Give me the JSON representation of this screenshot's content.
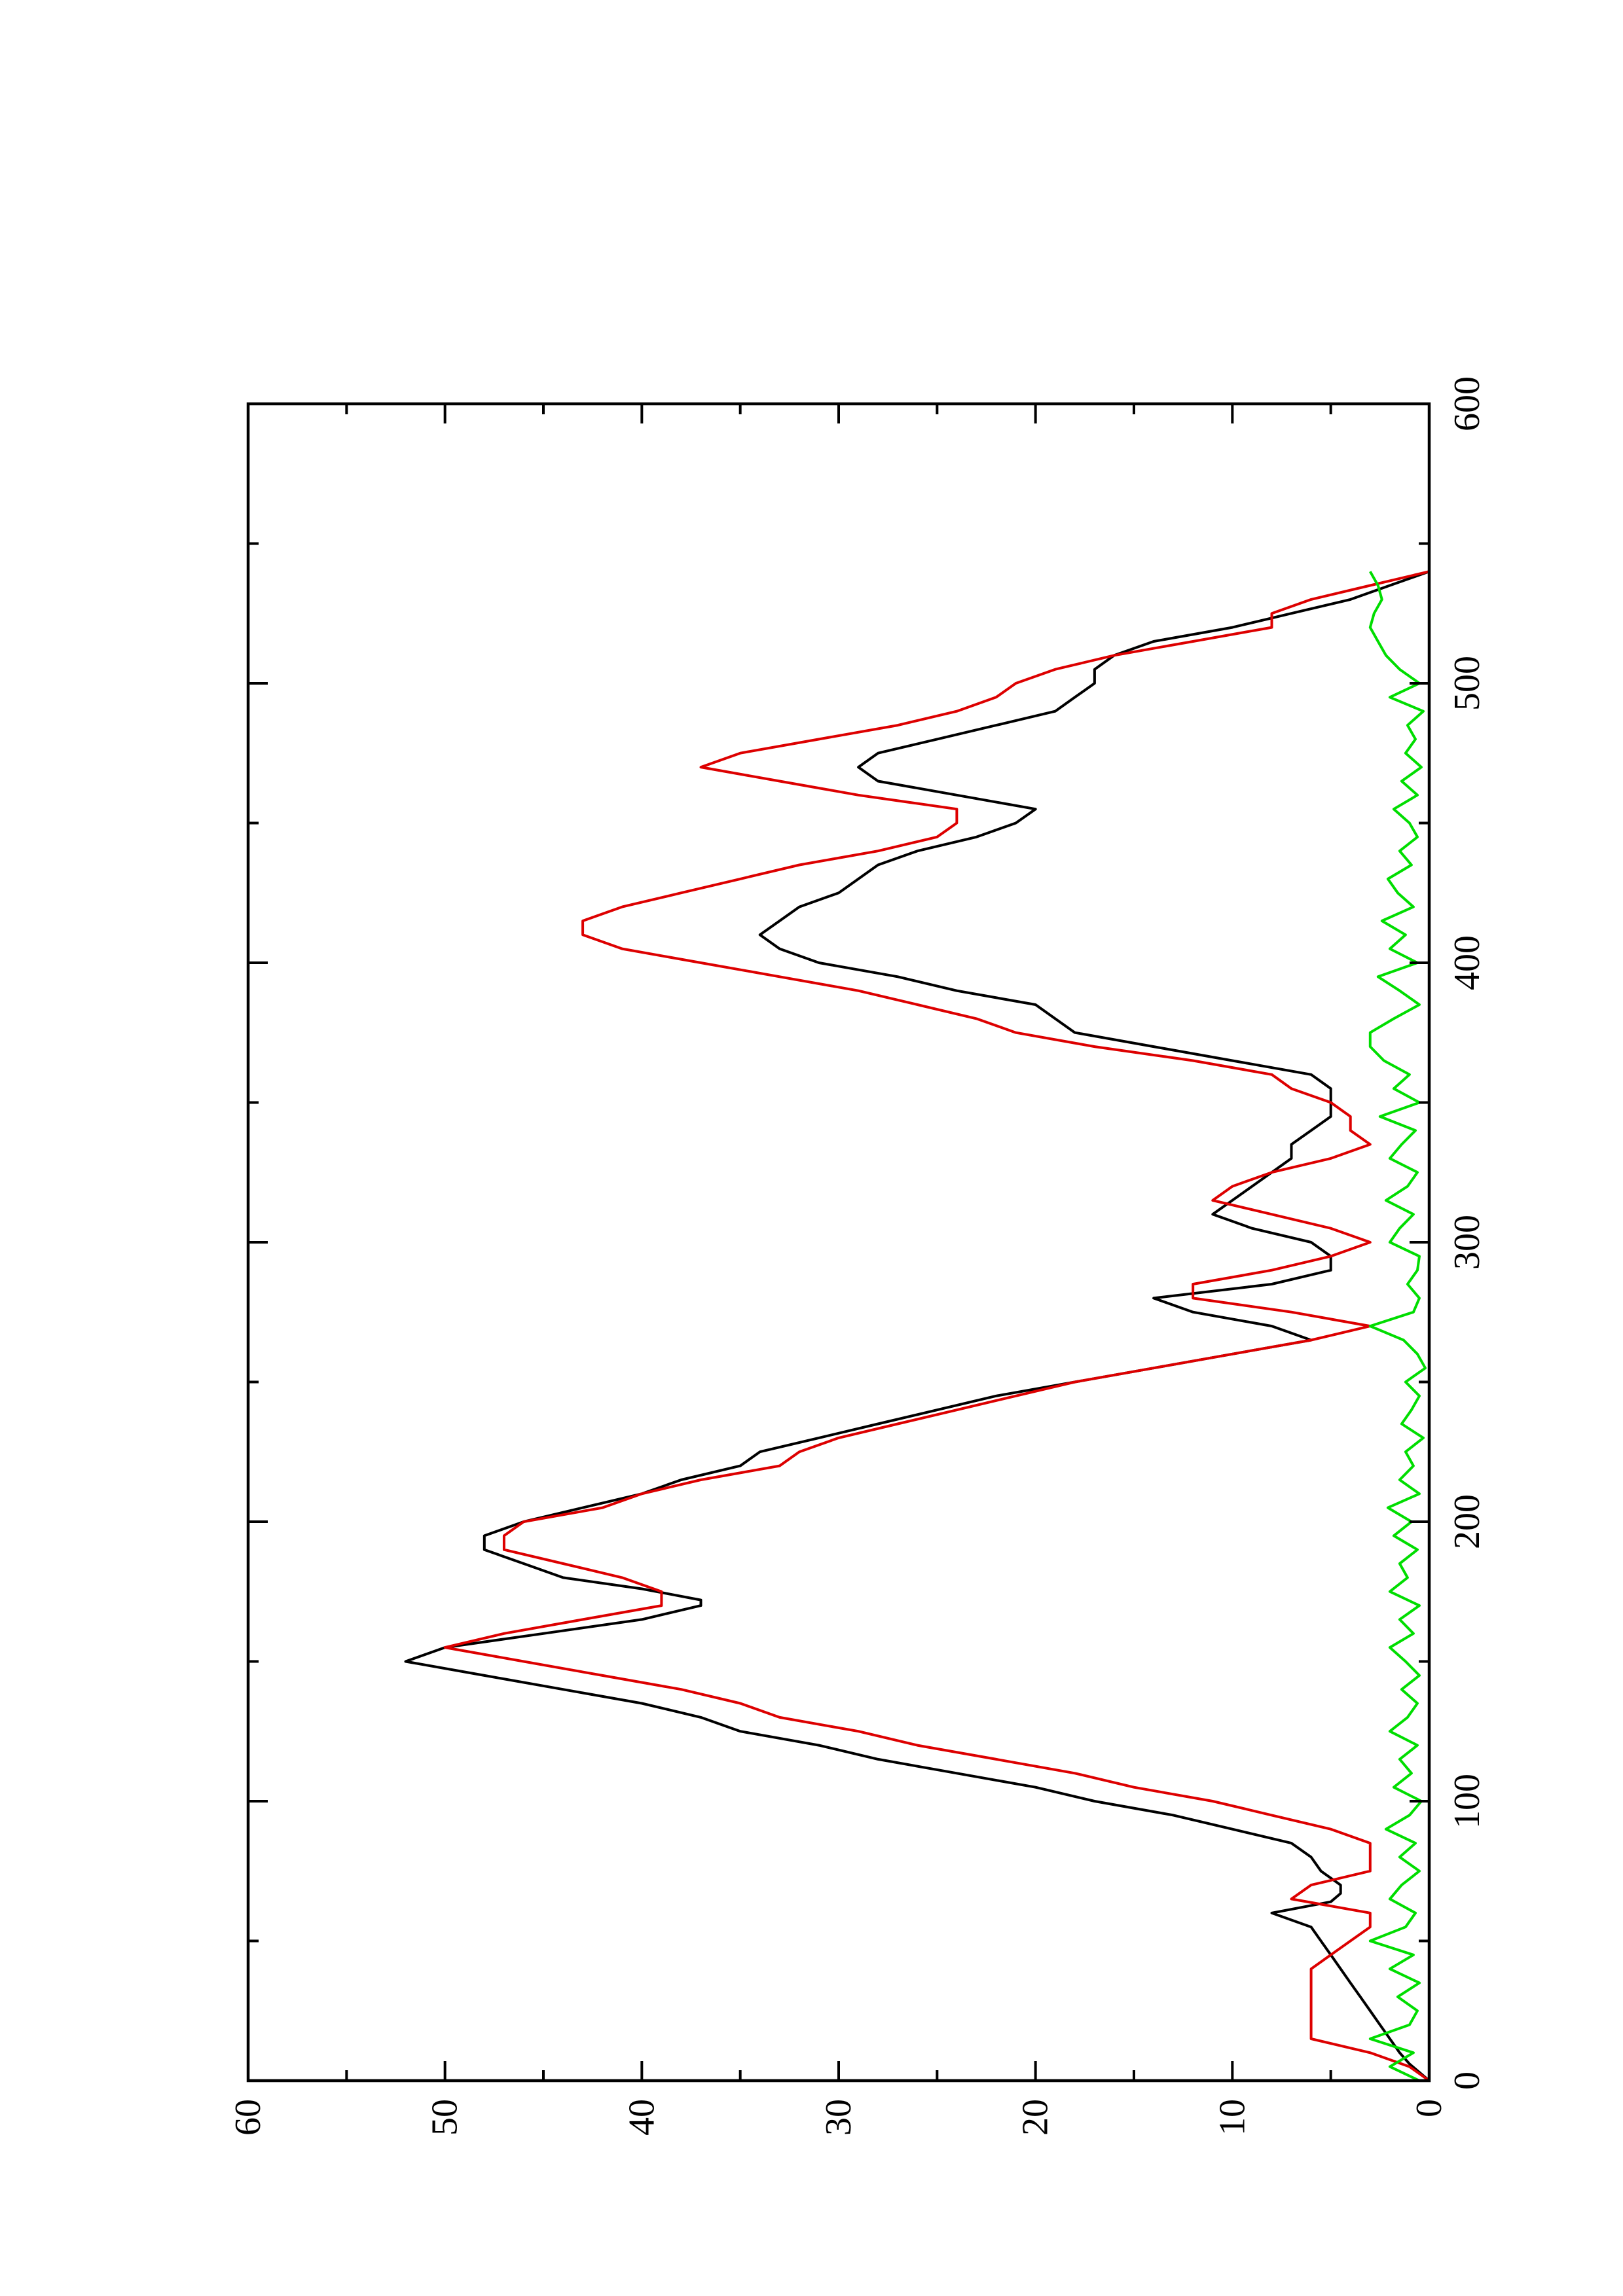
{
  "chart_data": {
    "type": "line",
    "orientation": "rotated-90-ccw",
    "title": "",
    "xlabel": "",
    "ylabel": "",
    "xlim": [
      0,
      600
    ],
    "ylim": [
      0,
      60
    ],
    "x_ticks": [
      0,
      100,
      200,
      300,
      400,
      500,
      600
    ],
    "y_ticks": [
      0,
      10,
      20,
      30,
      40,
      50,
      60
    ],
    "x_tick_labels": [
      "0",
      "100",
      "200",
      "300",
      "400",
      "500",
      "600"
    ],
    "y_tick_labels": [
      "0",
      "10",
      "20",
      "30",
      "40",
      "50",
      "60"
    ],
    "grid": false,
    "legend": "none",
    "series": [
      {
        "color": "#000000",
        "x": [
          0,
          6,
          10,
          15,
          20,
          25,
          30,
          35,
          40,
          45,
          50,
          55,
          60,
          64,
          67,
          70,
          75,
          80,
          85,
          90,
          95,
          100,
          105,
          110,
          115,
          120,
          125,
          130,
          135,
          140,
          145,
          150,
          155,
          160,
          165,
          170,
          172,
          176,
          180,
          185,
          190,
          195,
          200,
          205,
          210,
          215,
          220,
          225,
          230,
          235,
          240,
          245,
          250,
          255,
          260,
          265,
          270,
          275,
          280,
          285,
          290,
          295,
          300,
          305,
          310,
          315,
          320,
          325,
          330,
          335,
          340,
          345,
          350,
          355,
          360,
          365,
          370,
          375,
          380,
          385,
          390,
          395,
          400,
          405,
          410,
          415,
          420,
          425,
          430,
          435,
          440,
          445,
          450,
          455,
          460,
          465,
          470,
          475,
          480,
          485,
          490,
          495,
          500,
          505,
          510,
          515,
          520,
          525,
          530,
          535,
          540
        ],
        "y": [
          0,
          1,
          1.5,
          2,
          2.5,
          3,
          3.5,
          4,
          4.5,
          5,
          5.5,
          6,
          8,
          5,
          4.5,
          4.5,
          5.5,
          6,
          7,
          10,
          13,
          17,
          20,
          24,
          28,
          31,
          35,
          37,
          40,
          44,
          48,
          52,
          50,
          45,
          40,
          37,
          37,
          40,
          44,
          46,
          48,
          48,
          46,
          43,
          40,
          38,
          35,
          34,
          31,
          28,
          25,
          22,
          18,
          14,
          10,
          6,
          8,
          12,
          14,
          8,
          5,
          5,
          6,
          9,
          11,
          10,
          9,
          8,
          7,
          7,
          6,
          5,
          5,
          5,
          6,
          10,
          14,
          18,
          19,
          20,
          24,
          27,
          31,
          33,
          34,
          33,
          32,
          30,
          29,
          28,
          26,
          23,
          21,
          20,
          24,
          28,
          29,
          28,
          25,
          22,
          19,
          18,
          17,
          17,
          16,
          14,
          10,
          7,
          4,
          2,
          0
        ]
      },
      {
        "color": "#dd0000",
        "x": [
          0,
          5,
          10,
          15,
          20,
          25,
          30,
          35,
          40,
          45,
          50,
          55,
          60,
          65,
          70,
          75,
          80,
          85,
          90,
          95,
          100,
          105,
          110,
          115,
          120,
          125,
          130,
          135,
          140,
          145,
          150,
          155,
          160,
          165,
          170,
          175,
          180,
          185,
          190,
          195,
          200,
          205,
          210,
          215,
          220,
          225,
          230,
          235,
          240,
          245,
          250,
          255,
          260,
          265,
          270,
          275,
          280,
          285,
          290,
          295,
          300,
          305,
          310,
          315,
          320,
          325,
          330,
          335,
          340,
          345,
          350,
          355,
          360,
          365,
          370,
          375,
          380,
          385,
          390,
          395,
          400,
          405,
          410,
          415,
          420,
          425,
          430,
          435,
          440,
          445,
          450,
          455,
          460,
          465,
          470,
          475,
          480,
          485,
          490,
          495,
          500,
          505,
          510,
          515,
          520,
          525,
          530,
          535,
          540
        ],
        "y": [
          0,
          1,
          3,
          6,
          6,
          6,
          6,
          6,
          6,
          5,
          4,
          3,
          3,
          7,
          6,
          3,
          3,
          3,
          5,
          8,
          11,
          15,
          18,
          22,
          26,
          29,
          33,
          35,
          38,
          42,
          46,
          50,
          47,
          43,
          39,
          39,
          41,
          44,
          47,
          47,
          46,
          42,
          40,
          37,
          33,
          32,
          30,
          27,
          24,
          21,
          18,
          14,
          10,
          6,
          3,
          7,
          12,
          12,
          8,
          5,
          3,
          5,
          8,
          11,
          10,
          8,
          5,
          3,
          4,
          4,
          5,
          7,
          8,
          12,
          17,
          21,
          23,
          26,
          29,
          33,
          37,
          41,
          43,
          43,
          41,
          38,
          35,
          32,
          28,
          25,
          24,
          24,
          29,
          33,
          37,
          35,
          31,
          27,
          24,
          22,
          21,
          19,
          16,
          12,
          8,
          8,
          6,
          3,
          0
        ]
      },
      {
        "color": "#00dd00",
        "x": [
          0,
          5,
          10,
          15,
          20,
          25,
          30,
          35,
          40,
          45,
          50,
          55,
          60,
          65,
          70,
          75,
          80,
          85,
          90,
          95,
          100,
          105,
          110,
          115,
          120,
          125,
          130,
          135,
          140,
          145,
          150,
          155,
          160,
          165,
          170,
          175,
          180,
          185,
          190,
          195,
          200,
          205,
          210,
          215,
          220,
          225,
          230,
          235,
          240,
          245,
          250,
          255,
          260,
          265,
          270,
          275,
          280,
          285,
          290,
          295,
          300,
          305,
          310,
          315,
          320,
          325,
          330,
          335,
          340,
          345,
          350,
          355,
          360,
          365,
          370,
          375,
          380,
          385,
          390,
          395,
          400,
          405,
          410,
          415,
          420,
          425,
          430,
          435,
          440,
          445,
          450,
          455,
          460,
          465,
          470,
          475,
          480,
          485,
          490,
          495,
          500,
          505,
          510,
          515,
          520,
          525,
          530,
          535,
          540
        ],
        "y": [
          0.5,
          2,
          0.8,
          3,
          1,
          0.6,
          1.6,
          0.5,
          2,
          0.8,
          3,
          1.2,
          0.7,
          2,
          1.4,
          0.5,
          1.5,
          0.7,
          2.2,
          1,
          0.4,
          1.8,
          0.9,
          1.5,
          0.6,
          2,
          1.1,
          0.6,
          1.4,
          0.5,
          1.2,
          2,
          0.8,
          1.5,
          0.5,
          2,
          1.1,
          1.5,
          0.6,
          1.8,
          0.9,
          2.1,
          0.5,
          1.5,
          0.8,
          1.2,
          0.3,
          1.4,
          0.9,
          0.5,
          1.2,
          0.2,
          0.6,
          1.3,
          3,
          0.8,
          0.5,
          1.1,
          0.6,
          0.5,
          2,
          1.5,
          0.8,
          2.2,
          1.1,
          0.6,
          2,
          1.4,
          0.7,
          2.5,
          0.5,
          1.8,
          1,
          2.3,
          3,
          3,
          1.8,
          0.5,
          1.5,
          2.6,
          0.6,
          2,
          1.2,
          2.4,
          0.8,
          1.6,
          2.1,
          0.9,
          1.5,
          0.6,
          1,
          1.8,
          0.6,
          1.4,
          0.4,
          1.2,
          0.7,
          1.1,
          0.3,
          2,
          0.5,
          1.5,
          2.2,
          2.6,
          3,
          2.8,
          2.4,
          2.6,
          3
        ]
      }
    ]
  }
}
